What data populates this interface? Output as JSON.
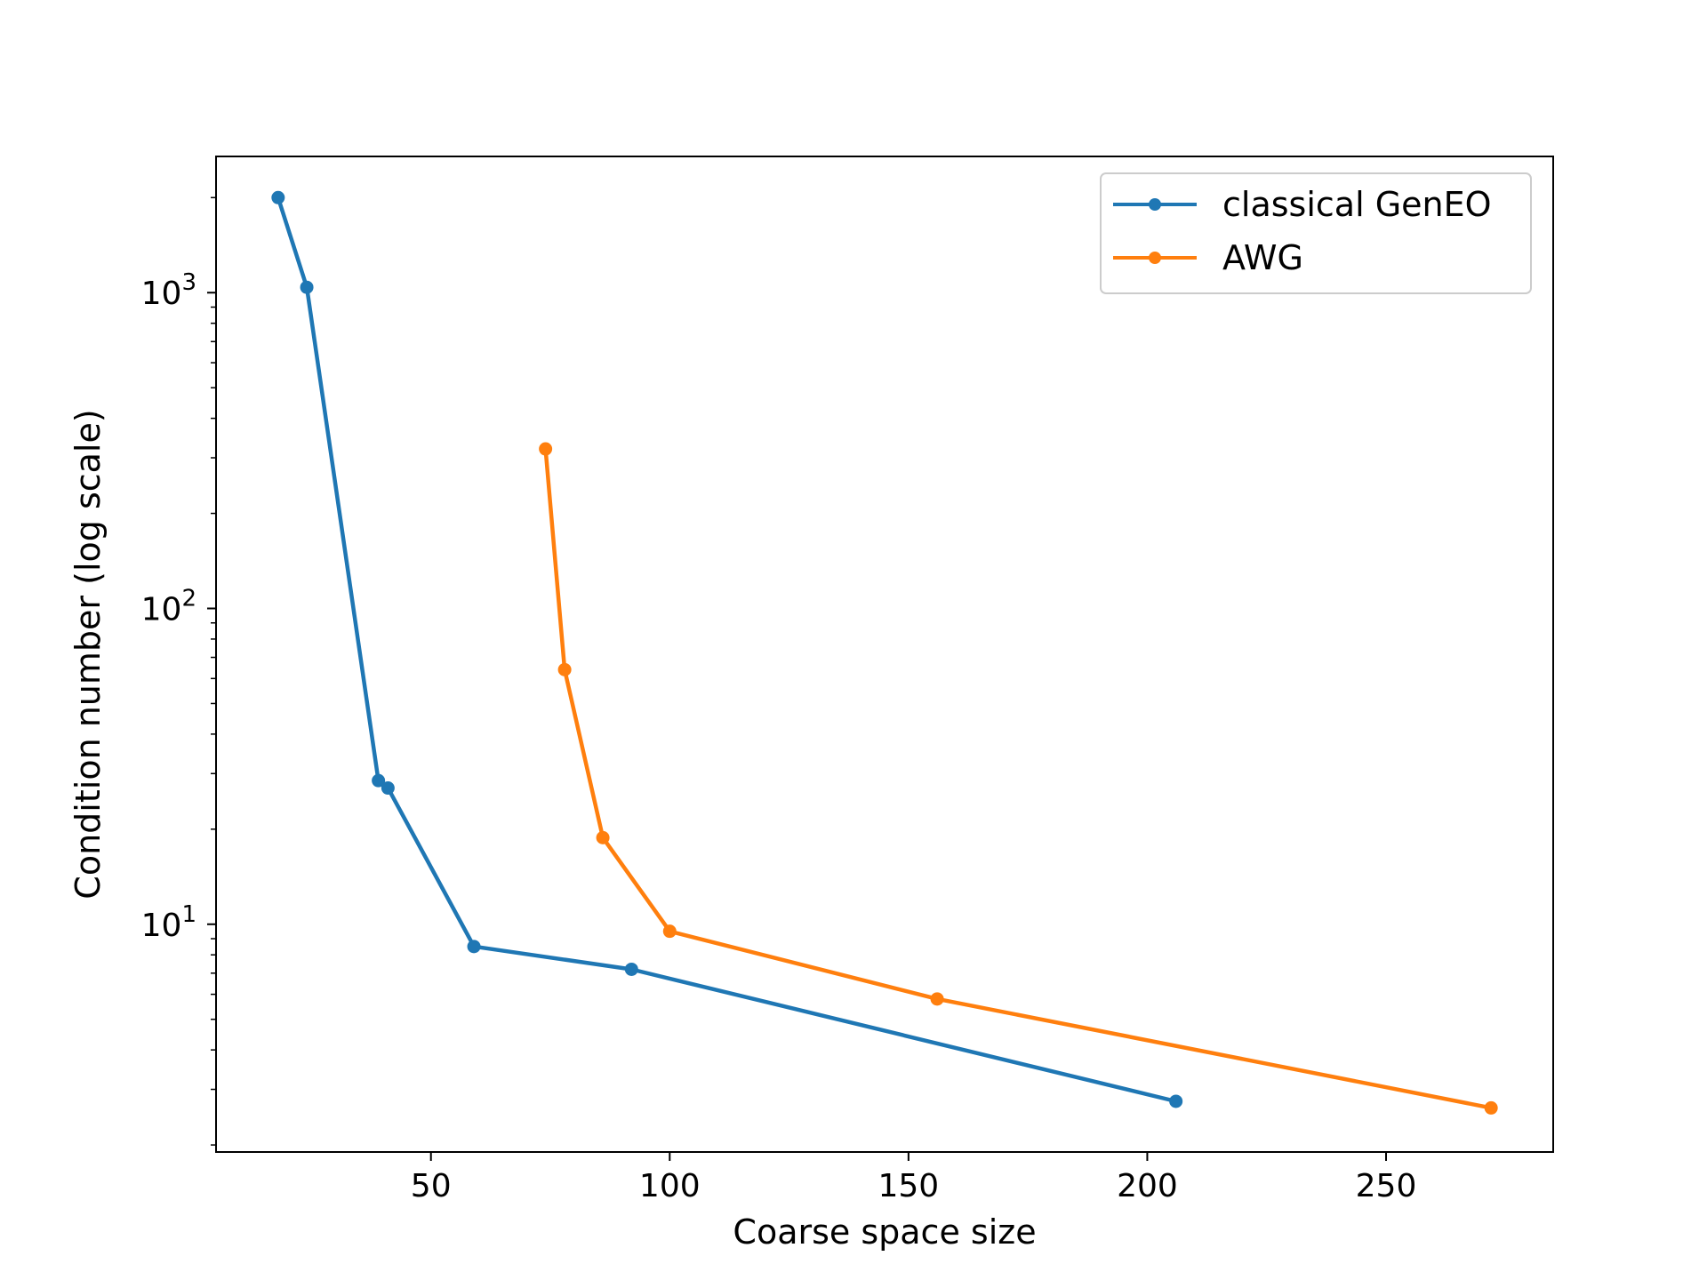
{
  "chart_data": {
    "type": "line",
    "title": "",
    "xlabel": "Coarse space size",
    "ylabel": "Condition number (log scale)",
    "xscale": "linear",
    "yscale": "log",
    "xlim": [
      5,
      285
    ],
    "ylim": [
      1.9,
      2700
    ],
    "xticks": [
      50,
      100,
      150,
      200,
      250
    ],
    "yticks": [
      {
        "value": 10,
        "base": "10",
        "exp": "1"
      },
      {
        "value": 100,
        "base": "10",
        "exp": "2"
      },
      {
        "value": 1000,
        "base": "10",
        "exp": "3"
      }
    ],
    "grid": false,
    "legend_position": "top-right",
    "series": [
      {
        "name": "classical GenEO",
        "color": "#1f77b4",
        "marker": "circle",
        "x": [
          18,
          24,
          39,
          41,
          59,
          92,
          206
        ],
        "y": [
          2000,
          1040,
          28.5,
          27,
          8.5,
          7.2,
          2.75
        ]
      },
      {
        "name": "AWG",
        "color": "#ff7f0e",
        "marker": "circle",
        "x": [
          74,
          78,
          86,
          100,
          156,
          272
        ],
        "y": [
          320,
          64,
          18.8,
          9.5,
          5.8,
          2.62
        ]
      }
    ]
  }
}
